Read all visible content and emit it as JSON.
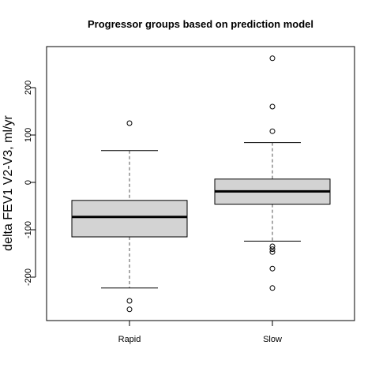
{
  "chart_data": {
    "type": "boxplot",
    "title": "Progressor groups based on prediction model",
    "xlabel": "",
    "ylabel": "delta FEV1 V2-V3, ml/yr",
    "ylim": [
      -290,
      285
    ],
    "yticks": [
      -200,
      -100,
      0,
      100,
      200
    ],
    "yticks_rotated": true,
    "grid": false,
    "legend": "none",
    "box_fill": "#d3d3d3",
    "categories": [
      "Rapid",
      "Slow"
    ],
    "series": [
      {
        "category": "Rapid",
        "whisker_low": -223,
        "q1": -115,
        "median": -73,
        "q3": -38,
        "whisker_high": 67,
        "outliers": [
          125,
          -250,
          -268
        ]
      },
      {
        "category": "Slow",
        "whisker_low": -124,
        "q1": -46,
        "median": -19,
        "q3": 7,
        "whisker_high": 84,
        "outliers": [
          262,
          160,
          108,
          -135,
          -141,
          -147,
          -182,
          -223
        ]
      }
    ]
  }
}
